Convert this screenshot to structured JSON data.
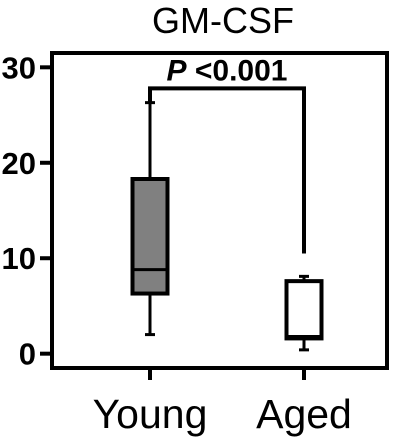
{
  "chart_data": {
    "type": "box",
    "title": "GM-CSF",
    "xlabel": "",
    "ylabel": "",
    "ylim": [
      -1.5,
      31.5
    ],
    "yticks": [
      0,
      10,
      20,
      30
    ],
    "grid": false,
    "categories": [
      "Young",
      "Aged"
    ],
    "boxes": [
      {
        "category": "Young",
        "whisker_low": 2.0,
        "q1": 6.3,
        "median": 8.8,
        "q3": 18.3,
        "whisker_high": 26.3,
        "fill": "#808080"
      },
      {
        "category": "Aged",
        "whisker_low": 0.4,
        "q1": 1.6,
        "median": 1.8,
        "q3": 7.6,
        "whisker_high": 8.1,
        "fill": "#ffffff"
      }
    ],
    "annotation": {
      "p_symbol": "P",
      "p_text": " <0.001",
      "bracket_left_bottom": 26.3,
      "bracket_right_bottom": 10.5,
      "bracket_top": 27.8
    }
  }
}
